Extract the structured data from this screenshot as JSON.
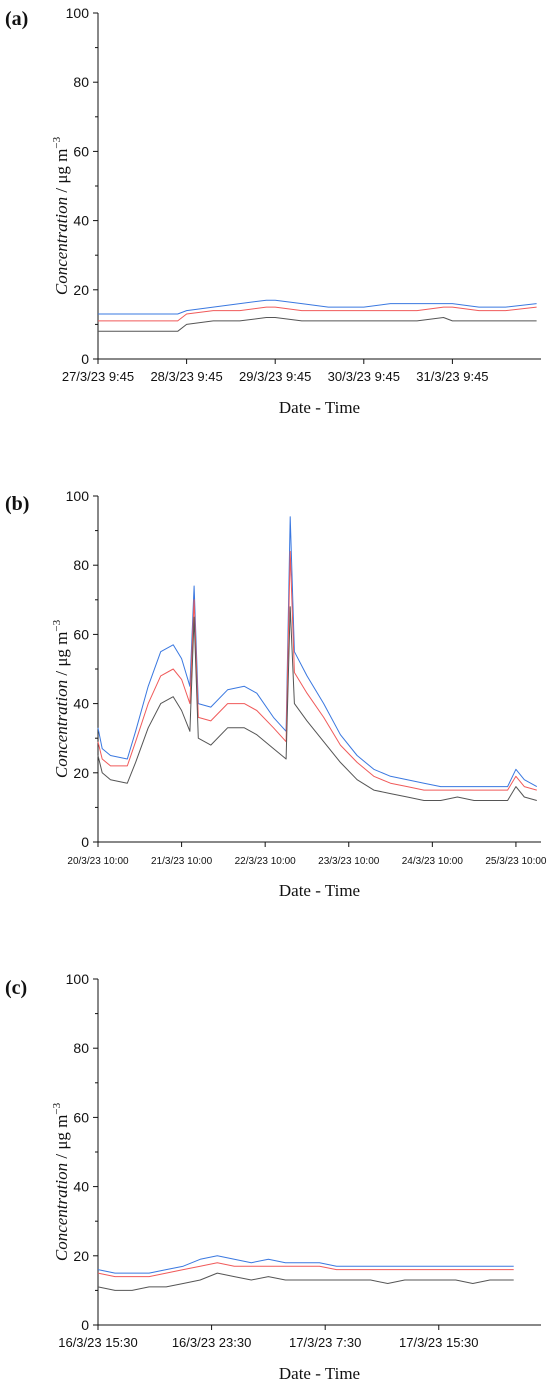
{
  "chart_data": [
    {
      "type": "line",
      "panel_label": "(a)",
      "xlabel": "Date - Time",
      "ylabel_italic": "Concentration",
      "ylabel_units": " / μg m",
      "ylabel_superscript": "−3",
      "ylim": [
        0,
        100
      ],
      "yticks": [
        0,
        20,
        40,
        60,
        80,
        100
      ],
      "xlim": [
        0,
        5
      ],
      "xticks": [
        {
          "x": 0,
          "label": "27/3/23 9:45"
        },
        {
          "x": 1,
          "label": "28/3/23 9:45"
        },
        {
          "x": 2,
          "label": "29/3/23 9:45"
        },
        {
          "x": 3,
          "label": "30/3/23 9:45"
        },
        {
          "x": 4,
          "label": "31/3/23 9:45"
        }
      ],
      "series_colors": [
        "#3a78e0",
        "#f05a5a",
        "#555555"
      ],
      "series": [
        {
          "x": [
            0,
            0.3,
            0.6,
            0.9,
            1.0,
            1.3,
            1.6,
            1.9,
            2.0,
            2.3,
            2.6,
            2.9,
            3.0,
            3.3,
            3.6,
            3.9,
            4.0,
            4.3,
            4.6,
            4.95
          ],
          "values": [
            13,
            13,
            13,
            13,
            14,
            15,
            16,
            17,
            17,
            16,
            15,
            15,
            15,
            16,
            16,
            16,
            16,
            15,
            15,
            16
          ]
        },
        {
          "x": [
            0,
            0.3,
            0.6,
            0.9,
            1.0,
            1.3,
            1.6,
            1.9,
            2.0,
            2.3,
            2.6,
            2.9,
            3.0,
            3.3,
            3.6,
            3.9,
            4.0,
            4.3,
            4.6,
            4.95
          ],
          "values": [
            11,
            11,
            11,
            11,
            13,
            14,
            14,
            15,
            15,
            14,
            14,
            14,
            14,
            14,
            14,
            15,
            15,
            14,
            14,
            15
          ]
        },
        {
          "x": [
            0,
            0.3,
            0.6,
            0.9,
            1.0,
            1.3,
            1.6,
            1.9,
            2.0,
            2.3,
            2.6,
            2.9,
            3.0,
            3.3,
            3.6,
            3.9,
            4.0,
            4.3,
            4.6,
            4.95
          ],
          "values": [
            8,
            8,
            8,
            8,
            10,
            11,
            11,
            12,
            12,
            11,
            11,
            11,
            11,
            11,
            11,
            12,
            11,
            11,
            11,
            11
          ]
        }
      ]
    },
    {
      "type": "line",
      "panel_label": "(b)",
      "xlabel": "Date - Time",
      "ylabel_italic": "Concentration",
      "ylabel_units": " / μg m",
      "ylabel_superscript": "−3",
      "ylim": [
        0,
        100
      ],
      "yticks": [
        0,
        20,
        40,
        60,
        80,
        100
      ],
      "xlim": [
        0,
        5.3
      ],
      "xticks": [
        {
          "x": 0,
          "label": "20/3/23 10:00"
        },
        {
          "x": 1,
          "label": "21/3/23 10:00"
        },
        {
          "x": 2,
          "label": "22/3/23 10:00"
        },
        {
          "x": 3,
          "label": "23/3/23 10:00"
        },
        {
          "x": 4,
          "label": "24/3/23 10:00"
        },
        {
          "x": 5,
          "label": "25/3/23 10:00"
        }
      ],
      "series_colors": [
        "#3a78e0",
        "#f05a5a",
        "#555555"
      ],
      "series": [
        {
          "x": [
            0,
            0.05,
            0.15,
            0.35,
            0.45,
            0.6,
            0.75,
            0.9,
            1.0,
            1.1,
            1.15,
            1.2,
            1.35,
            1.55,
            1.75,
            1.9,
            2.1,
            2.25,
            2.3,
            2.35,
            2.5,
            2.7,
            2.9,
            3.1,
            3.3,
            3.5,
            3.7,
            3.9,
            4.1,
            4.3,
            4.5,
            4.7,
            4.9,
            5.0,
            5.1,
            5.25
          ],
          "values": [
            33,
            27,
            25,
            24,
            32,
            45,
            55,
            57,
            53,
            45,
            74,
            40,
            39,
            44,
            45,
            43,
            36,
            32,
            94,
            55,
            48,
            40,
            31,
            25,
            21,
            19,
            18,
            17,
            16,
            16,
            16,
            16,
            16,
            21,
            18,
            16
          ]
        },
        {
          "x": [
            0,
            0.05,
            0.15,
            0.35,
            0.45,
            0.6,
            0.75,
            0.9,
            1.0,
            1.1,
            1.15,
            1.2,
            1.35,
            1.55,
            1.75,
            1.9,
            2.1,
            2.25,
            2.3,
            2.35,
            2.5,
            2.7,
            2.9,
            3.1,
            3.3,
            3.5,
            3.7,
            3.9,
            4.1,
            4.3,
            4.5,
            4.7,
            4.9,
            5.0,
            5.1,
            5.25
          ],
          "values": [
            29,
            24,
            22,
            22,
            29,
            40,
            48,
            50,
            47,
            40,
            70,
            36,
            35,
            40,
            40,
            38,
            33,
            29,
            84,
            49,
            43,
            36,
            28,
            23,
            19,
            17,
            16,
            15,
            15,
            15,
            15,
            15,
            15,
            19,
            16,
            15
          ]
        },
        {
          "x": [
            0,
            0.05,
            0.15,
            0.35,
            0.45,
            0.6,
            0.75,
            0.9,
            1.0,
            1.1,
            1.15,
            1.2,
            1.35,
            1.55,
            1.75,
            1.9,
            2.1,
            2.25,
            2.3,
            2.35,
            2.5,
            2.7,
            2.9,
            3.1,
            3.3,
            3.5,
            3.7,
            3.9,
            4.1,
            4.3,
            4.5,
            4.7,
            4.9,
            5.0,
            5.1,
            5.25
          ],
          "values": [
            25,
            20,
            18,
            17,
            23,
            33,
            40,
            42,
            38,
            32,
            65,
            30,
            28,
            33,
            33,
            31,
            27,
            24,
            68,
            40,
            35,
            29,
            23,
            18,
            15,
            14,
            13,
            12,
            12,
            13,
            12,
            12,
            12,
            16,
            13,
            12
          ]
        }
      ]
    },
    {
      "type": "line",
      "panel_label": "(c)",
      "xlabel": "Date - Time",
      "ylabel_italic": "Concentration",
      "ylabel_units": " / μg m",
      "ylabel_superscript": "−3",
      "ylim": [
        0,
        100
      ],
      "yticks": [
        0,
        20,
        40,
        60,
        80,
        100
      ],
      "xlim": [
        0,
        1.3
      ],
      "xticks": [
        {
          "x": 0,
          "label": "16/3/23 15:30"
        },
        {
          "x": 0.3333,
          "label": "16/3/23 23:30"
        },
        {
          "x": 0.6667,
          "label": "17/3/23 7:30"
        },
        {
          "x": 1.0,
          "label": "17/3/23 15:30"
        }
      ],
      "series_colors": [
        "#3a78e0",
        "#f05a5a",
        "#555555"
      ],
      "series": [
        {
          "x": [
            0,
            0.05,
            0.1,
            0.15,
            0.2,
            0.25,
            0.3,
            0.35,
            0.4,
            0.45,
            0.5,
            0.55,
            0.6,
            0.65,
            0.7,
            0.75,
            0.8,
            0.85,
            0.9,
            0.95,
            1.0,
            1.05,
            1.1,
            1.15,
            1.22
          ],
          "values": [
            16,
            15,
            15,
            15,
            16,
            17,
            19,
            20,
            19,
            18,
            19,
            18,
            18,
            18,
            17,
            17,
            17,
            17,
            17,
            17,
            17,
            17,
            17,
            17,
            17
          ]
        },
        {
          "x": [
            0,
            0.05,
            0.1,
            0.15,
            0.2,
            0.25,
            0.3,
            0.35,
            0.4,
            0.45,
            0.5,
            0.55,
            0.6,
            0.65,
            0.7,
            0.75,
            0.8,
            0.85,
            0.9,
            0.95,
            1.0,
            1.05,
            1.1,
            1.15,
            1.22
          ],
          "values": [
            15,
            14,
            14,
            14,
            15,
            16,
            17,
            18,
            17,
            17,
            17,
            17,
            17,
            17,
            16,
            16,
            16,
            16,
            16,
            16,
            16,
            16,
            16,
            16,
            16
          ]
        },
        {
          "x": [
            0,
            0.05,
            0.1,
            0.15,
            0.2,
            0.25,
            0.3,
            0.35,
            0.4,
            0.45,
            0.5,
            0.55,
            0.6,
            0.65,
            0.7,
            0.75,
            0.8,
            0.85,
            0.9,
            0.95,
            1.0,
            1.05,
            1.1,
            1.15,
            1.22
          ],
          "values": [
            11,
            10,
            10,
            11,
            11,
            12,
            13,
            15,
            14,
            13,
            14,
            13,
            13,
            13,
            13,
            13,
            13,
            12,
            13,
            13,
            13,
            13,
            12,
            13,
            13
          ]
        }
      ]
    }
  ]
}
